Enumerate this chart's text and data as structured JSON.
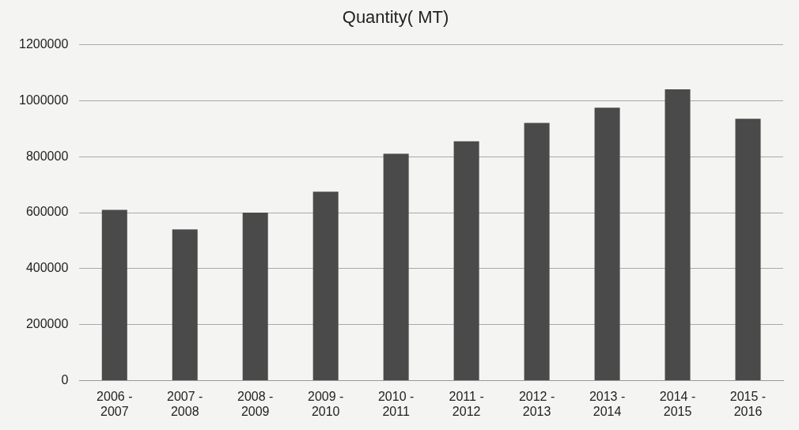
{
  "chart_data": {
    "type": "bar",
    "title": "Quantity( MT)",
    "categories": [
      "2006 - 2007",
      "2007 - 2008",
      "2008 - 2009",
      "2009 - 2010",
      "2010 - 2011",
      "2011 - 2012",
      "2012 - 2013",
      "2013 - 2014",
      "2014 - 2015",
      "2015 - 2016"
    ],
    "values": [
      610000,
      540000,
      600000,
      675000,
      810000,
      855000,
      920000,
      975000,
      1040000,
      935000
    ],
    "color": "#4a4a4a",
    "ylim": [
      0,
      1200000
    ],
    "yticks": [
      0,
      200000,
      400000,
      600000,
      800000,
      1000000,
      1200000
    ],
    "grid": "y"
  }
}
